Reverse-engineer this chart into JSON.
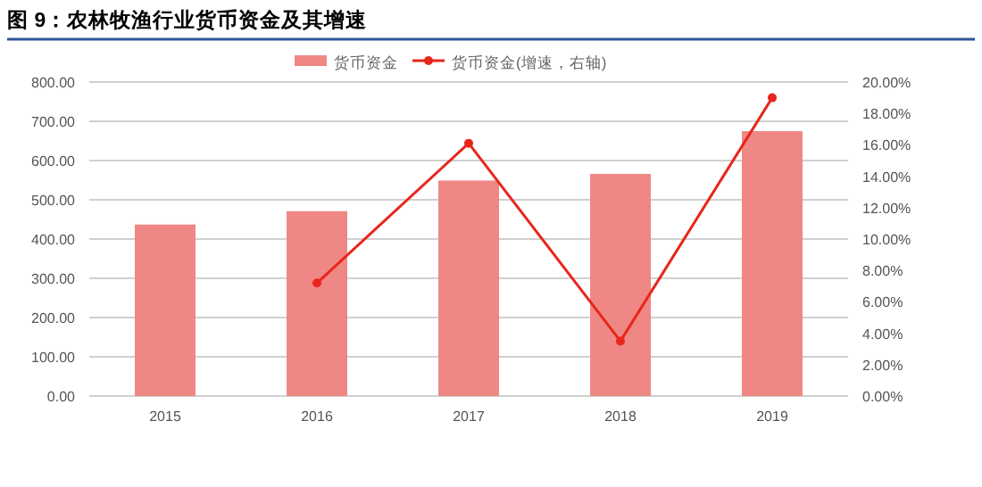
{
  "chart_data": {
    "type": "bar",
    "title": "图 9：农林牧渔行业货币资金及其增速",
    "categories": [
      "2015",
      "2016",
      "2017",
      "2018",
      "2019"
    ],
    "series": [
      {
        "name": "货币资金",
        "color": "#ef8885",
        "values": [
          437,
          471,
          549,
          566,
          675
        ]
      },
      {
        "name": "货币资金(增速，右轴)",
        "type": "line",
        "axis": "y2",
        "color": "#e8261c",
        "marker": "circle",
        "values": [
          null,
          7.2,
          16.1,
          3.5,
          19.0
        ]
      }
    ],
    "ylim": [
      0,
      800
    ],
    "yticks": [
      {
        "value": 0,
        "label": "0.00"
      },
      {
        "value": 100,
        "label": "100.00"
      },
      {
        "value": 200,
        "label": "200.00"
      },
      {
        "value": 300,
        "label": "300.00"
      },
      {
        "value": 400,
        "label": "400.00"
      },
      {
        "value": 500,
        "label": "500.00"
      },
      {
        "value": 600,
        "label": "600.00"
      },
      {
        "value": 700,
        "label": "700.00"
      },
      {
        "value": 800,
        "label": "800.00"
      }
    ],
    "y2lim": [
      0,
      20
    ],
    "y2ticks": [
      {
        "value": 0,
        "label": "0.00%"
      },
      {
        "value": 2,
        "label": "2.00%"
      },
      {
        "value": 4,
        "label": "4.00%"
      },
      {
        "value": 6,
        "label": "6.00%"
      },
      {
        "value": 8,
        "label": "8.00%"
      },
      {
        "value": 10,
        "label": "10.00%"
      },
      {
        "value": 12,
        "label": "12.00%"
      },
      {
        "value": 14,
        "label": "14.00%"
      },
      {
        "value": 16,
        "label": "16.00%"
      },
      {
        "value": 18,
        "label": "18.00%"
      },
      {
        "value": 20,
        "label": "20.00%"
      }
    ],
    "grid": "y",
    "legend": "top"
  }
}
